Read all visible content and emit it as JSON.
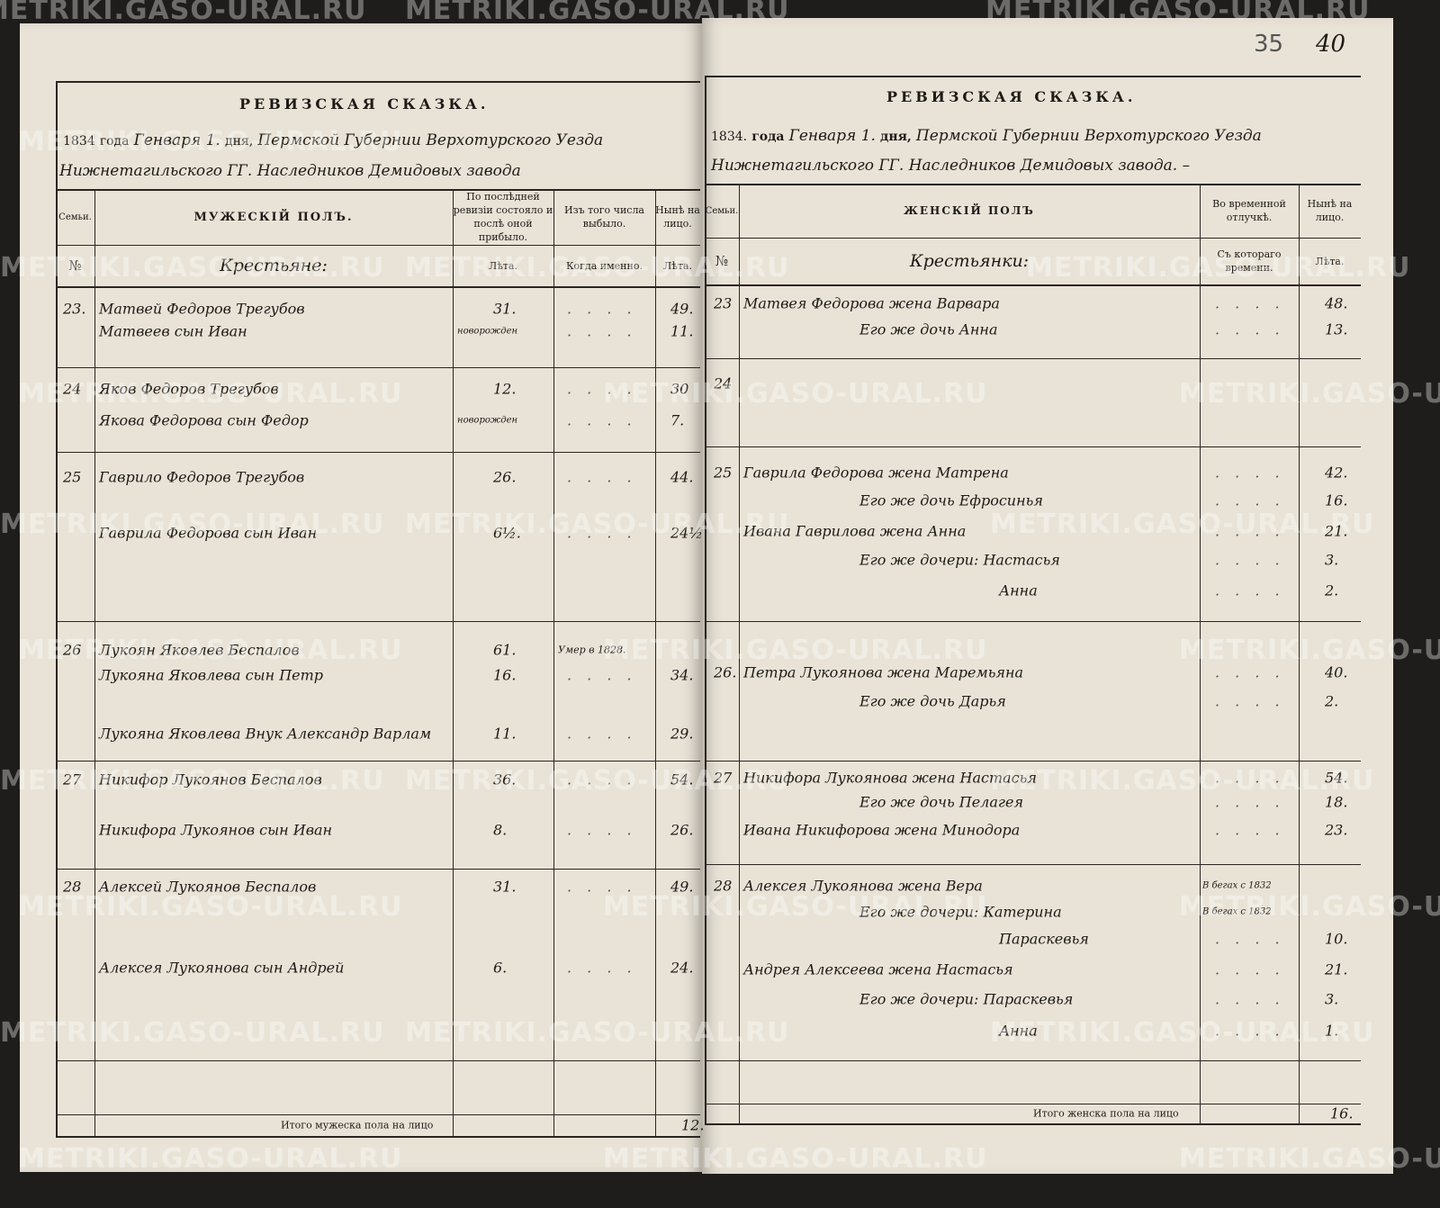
{
  "document": {
    "watermark": "METRIKI.GASO-URAL.RU",
    "folio": {
      "stamp": "35",
      "handwritten": "40"
    },
    "left_page": {
      "title": "РЕВИЗСКАЯ СКАЗКА.",
      "year": "1834",
      "year_word": "года",
      "month": "Генваря 1.",
      "day_word": "дня,",
      "place_line1": "Пермской Губернии Верхотурского Уезда",
      "place_line2": "Нижнетагильского ГГ. Наследников Демидовых завода",
      "headers": {
        "family": "Семьи.",
        "section": "МУЖЕСКІЙ ПОЛЪ.",
        "last_revision": "По послѣдней ревизіи состояло и послѣ оной прибыло.",
        "departed": "Изъ того числа выбыло.",
        "present": "Нынѣ на лицо.",
        "number": "№",
        "estate": "Крестьяне:",
        "years": "Лѣта.",
        "when": "Когда именно.",
        "years2": "Лѣта."
      },
      "entries": [
        {
          "family": "23.",
          "name": "Матвей Федоров Трегубов",
          "last_revision": "31.",
          "departed": "",
          "present": "49."
        },
        {
          "family": "",
          "name": "Матвеев сын Иван",
          "last_revision": "новорожден",
          "departed": "",
          "present": "11."
        },
        {
          "family": "24",
          "name": "Яков Федоров Трегубов",
          "last_revision": "12.",
          "departed": "",
          "present": "30"
        },
        {
          "family": "",
          "name": "Якова Федорова сын Федор",
          "last_revision": "новорожден",
          "departed": "",
          "present": "7."
        },
        {
          "family": "25",
          "name": "Гаврило Федоров Трегубов",
          "last_revision": "26.",
          "departed": "",
          "present": "44."
        },
        {
          "family": "",
          "name": "Гаврила Федорова сын Иван",
          "last_revision": "6½.",
          "departed": "",
          "present": "24½"
        },
        {
          "family": "26",
          "name": "Лукоян Яковлев Беспалов",
          "last_revision": "61.",
          "departed": "Умер в 1828.",
          "present": ""
        },
        {
          "family": "",
          "name": "Лукояна Яковлева сын Петр",
          "last_revision": "16.",
          "departed": "",
          "present": "34."
        },
        {
          "family": "",
          "name": "Лукояна Яковлева Внук Александр Варлам",
          "last_revision": "11.",
          "departed": "",
          "present": "29."
        },
        {
          "family": "27",
          "name": "Никифор Лукоянов Беспалов",
          "last_revision": "36.",
          "departed": "",
          "present": "54."
        },
        {
          "family": "",
          "name": "Никифора Лукоянов сын Иван",
          "last_revision": "8.",
          "departed": "",
          "present": "26."
        },
        {
          "family": "28",
          "name": "Алексей Лукоянов Беспалов",
          "last_revision": "31.",
          "departed": "",
          "present": "49."
        },
        {
          "family": "",
          "name": "Алексея Лукоянова сын Андрей",
          "last_revision": "6.",
          "departed": "",
          "present": "24."
        }
      ],
      "total_label": "Итого мужеска пола на лицо",
      "total_value": "12."
    },
    "right_page": {
      "title": "РЕВИЗСКАЯ СКАЗКА.",
      "year": "1834.",
      "year_word": "года",
      "month": "Генваря 1.",
      "day_word": "дня,",
      "place_line1": "Пермской Губернии Верхотурского Уезда",
      "place_line2": "Нижнетагильского ГГ. Наследников Демидовых завода. –",
      "headers": {
        "family": "Семьи.",
        "section": "ЖЕНСКІЙ ПОЛЪ",
        "absence": "Во временной отлучкѣ.",
        "present": "Нынѣ на лицо.",
        "number": "№",
        "estate": "Крестьянки:",
        "since": "Съ котораго времени.",
        "years": "Лѣта."
      },
      "family_24": "24",
      "entries": [
        {
          "family": "23",
          "name": "Матвея Федорова жена Варвара",
          "absence": "",
          "present": "48."
        },
        {
          "family": "",
          "name": "Его же дочь Анна",
          "absence": "",
          "present": "13."
        },
        {
          "family": "25",
          "name": "Гаврила Федорова жена Матрена",
          "absence": "",
          "present": "42."
        },
        {
          "family": "",
          "name": "Его же дочь Ефросинья",
          "absence": "",
          "present": "16."
        },
        {
          "family": "",
          "name": "Ивана Гаврилова жена Анна",
          "absence": "",
          "present": "21."
        },
        {
          "family": "",
          "name": "Его же дочери: Настасья",
          "absence": "",
          "present": "3."
        },
        {
          "family": "",
          "name": "Анна",
          "absence": "",
          "present": "2."
        },
        {
          "family": "26.",
          "name": "Петра Лукоянова жена Маремьяна",
          "absence": "",
          "present": "40."
        },
        {
          "family": "",
          "name": "Его же дочь Дарья",
          "absence": "",
          "present": "2."
        },
        {
          "family": "27",
          "name": "Никифора Лукоянова жена Настасья",
          "absence": "",
          "present": "54."
        },
        {
          "family": "",
          "name": "Его же дочь Пелагея",
          "absence": "",
          "present": "18."
        },
        {
          "family": "",
          "name": "Ивана Никифорова жена Минодора",
          "absence": "",
          "present": "23."
        },
        {
          "family": "28",
          "name": "Алексея Лукоянова жена Вера",
          "absence": "В бегах с 1832",
          "present": ""
        },
        {
          "family": "",
          "name": "Его же дочери: Катерина",
          "absence": "В бегах с 1832",
          "present": ""
        },
        {
          "family": "",
          "name": "Параскевья",
          "absence": "",
          "present": "10."
        },
        {
          "family": "",
          "name": "Андрея Алексеева жена Настасья",
          "absence": "",
          "present": "21."
        },
        {
          "family": "",
          "name": "Его же дочери: Параскевья",
          "absence": "",
          "present": "3."
        },
        {
          "family": "",
          "name": "Анна",
          "absence": "",
          "present": "1."
        }
      ],
      "total_label": "Итого женска пола на лицо",
      "total_value": "16."
    }
  }
}
